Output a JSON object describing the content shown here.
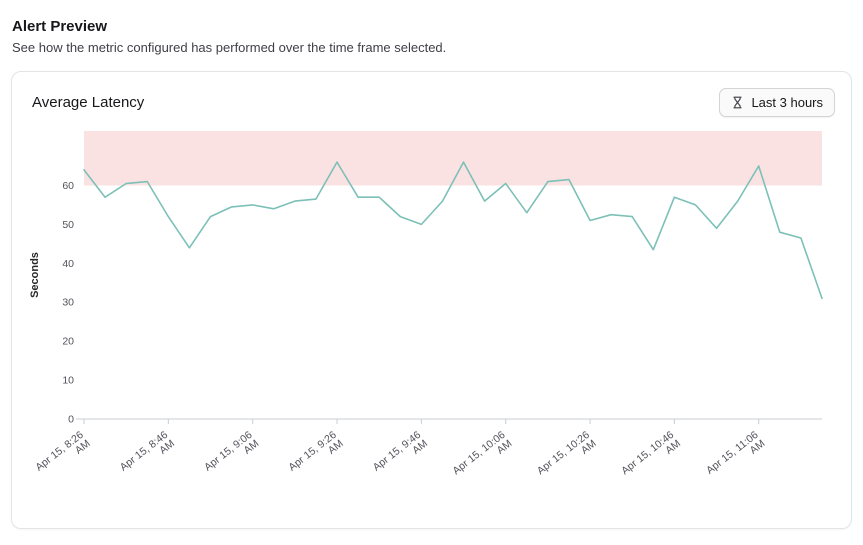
{
  "page": {
    "title": "Alert Preview",
    "subtitle": "See how the metric configured has performed over the time frame selected."
  },
  "card": {
    "title": "Average Latency",
    "time_range_button": {
      "label": "Last 3 hours",
      "icon": "hourglass-icon"
    }
  },
  "chart_data": {
    "type": "line",
    "title": "Average Latency",
    "ylabel": "Seconds",
    "ylim": [
      0,
      74
    ],
    "yticks": [
      0,
      10,
      20,
      30,
      40,
      50,
      60
    ],
    "grid": false,
    "legend": "none",
    "xtick_every": 4,
    "xtick_labels": [
      "Apr 15, 8:26 AM",
      "Apr 15, 8:46 AM",
      "Apr 15, 9:06 AM",
      "Apr 15, 9:26 AM",
      "Apr 15, 9:46 AM",
      "Apr 15, 10:06 AM",
      "Apr 15, 10:26 AM",
      "Apr 15, 10:46 AM",
      "Apr 15, 11:06 AM"
    ],
    "x": [
      "8:26 AM",
      "8:31 AM",
      "8:36 AM",
      "8:41 AM",
      "8:46 AM",
      "8:51 AM",
      "8:56 AM",
      "9:01 AM",
      "9:06 AM",
      "9:11 AM",
      "9:16 AM",
      "9:21 AM",
      "9:26 AM",
      "9:31 AM",
      "9:36 AM",
      "9:41 AM",
      "9:46 AM",
      "9:51 AM",
      "9:56 AM",
      "10:01 AM",
      "10:06 AM",
      "10:11 AM",
      "10:16 AM",
      "10:21 AM",
      "10:26 AM",
      "10:31 AM",
      "10:36 AM",
      "10:41 AM",
      "10:46 AM",
      "10:51 AM",
      "10:56 AM",
      "11:01 AM",
      "11:06 AM",
      "11:11 AM",
      "11:16 AM",
      "11:21 AM"
    ],
    "values": [
      64,
      57,
      60.5,
      61,
      52,
      44,
      52,
      54.5,
      55,
      54,
      56,
      56.5,
      66,
      57,
      57,
      52,
      50,
      56,
      66,
      56,
      60.5,
      53,
      61,
      61.5,
      51,
      52.5,
      52,
      43.5,
      57,
      55,
      49,
      56,
      65,
      48,
      46.5,
      31
    ],
    "threshold_band": {
      "from": 60,
      "to": 74,
      "color": "#fbe2e2"
    },
    "line_color": "#7cc0b8",
    "axis_color": "#c9ced4",
    "tick_text_color": "#52525b"
  }
}
